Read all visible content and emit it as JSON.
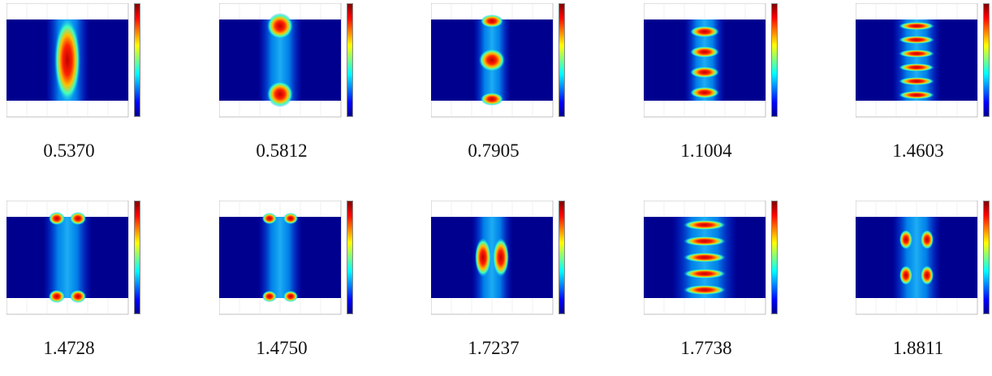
{
  "eigenvalues": [
    {
      "label": "0.5370",
      "pattern": "column"
    },
    {
      "label": "0.5812",
      "pattern": "two-blobs-vertical"
    },
    {
      "label": "0.7905",
      "pattern": "three-blobs-vertical"
    },
    {
      "label": "1.1004",
      "pattern": "stacked-rings"
    },
    {
      "label": "1.4603",
      "pattern": "dense-rings"
    },
    {
      "label": "1.4728",
      "pattern": "corner-pairs"
    },
    {
      "label": "1.4750",
      "pattern": "corner-pairs-thin"
    },
    {
      "label": "1.7237",
      "pattern": "twin-ovals"
    },
    {
      "label": "1.7738",
      "pattern": "mixed-rings"
    },
    {
      "label": "1.8811",
      "pattern": "quad-blobs"
    }
  ],
  "colormap": "jet"
}
